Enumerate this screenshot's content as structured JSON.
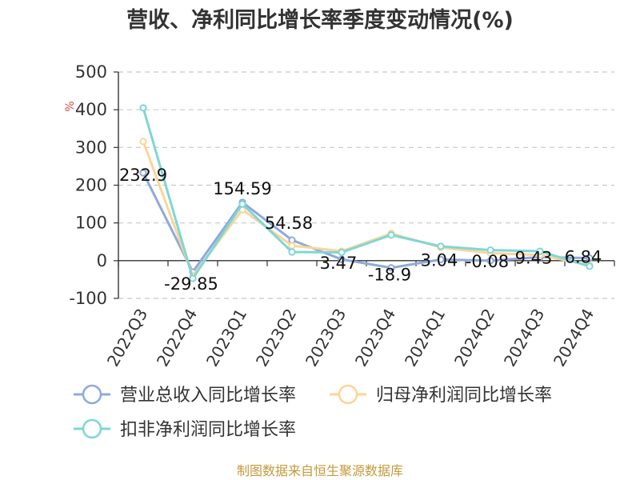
{
  "chart_data": {
    "type": "line",
    "title": "营收、净利同比增长率季度变动情况(%)",
    "ylabel": "%",
    "ylim": [
      -100,
      500
    ],
    "yticks": [
      500,
      400,
      300,
      200,
      100,
      0,
      -100
    ],
    "grid": true,
    "categories": [
      "2022Q3",
      "2022Q4",
      "2023Q1",
      "2023Q2",
      "2023Q3",
      "2023Q4",
      "2024Q1",
      "2024Q2",
      "2024Q3",
      "2024Q4"
    ],
    "series": [
      {
        "name": "营业总收入同比增长率",
        "color": "#8fa9db",
        "values": [
          232.9,
          -29.85,
          154.59,
          54.58,
          3.47,
          -18.9,
          3.04,
          -0.08,
          9.43,
          6.84
        ],
        "labels": [
          "232.9",
          "-29.85",
          "154.59",
          "54.58",
          "3.47",
          "-18.9",
          "3.04",
          "-0.08",
          "9.43",
          "6.84"
        ]
      },
      {
        "name": "归母净利润同比增长率",
        "color": "#fbd59a",
        "values": [
          316,
          -40,
          135,
          40,
          25,
          72,
          35,
          20,
          15,
          -12
        ]
      },
      {
        "name": "扣非净利润同比增长率",
        "color": "#7fd6d6",
        "values": [
          405,
          -47,
          150,
          23,
          22,
          68,
          38,
          28,
          25,
          -15
        ]
      }
    ],
    "legend_position": "bottom"
  },
  "source": "制图数据来自恒生聚源数据库"
}
